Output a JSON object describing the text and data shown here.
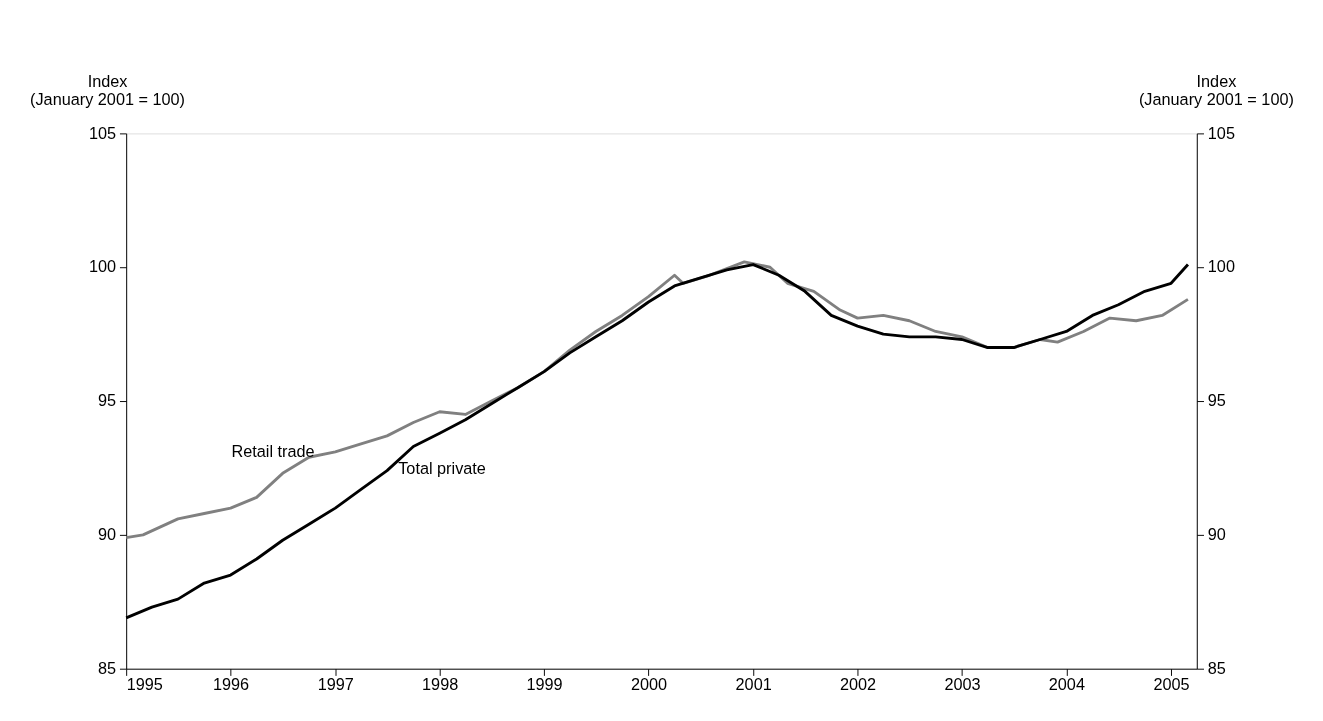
{
  "chart_data": {
    "type": "line",
    "ylabel": "Index\n(January 2001 = 100)",
    "y2label": "Index\n(January 2001 = 100)",
    "xlim": [
      "1995-01",
      "2005-04"
    ],
    "xticks": [
      {
        "value": "1995",
        "label": "1995"
      },
      {
        "value": "1996",
        "label": "1996"
      },
      {
        "value": "1997",
        "label": "1997"
      },
      {
        "value": "1998",
        "label": "1998"
      },
      {
        "value": "1999",
        "label": "1999"
      },
      {
        "value": "2000",
        "label": "2000"
      },
      {
        "value": "2001",
        "label": "2001"
      },
      {
        "value": "2002",
        "label": "2002"
      },
      {
        "value": "2003",
        "label": "2003"
      },
      {
        "value": "2004",
        "label": "2004"
      },
      {
        "value": "2005",
        "label": "2005"
      }
    ],
    "ylim": [
      85,
      105
    ],
    "yticks": [
      85,
      90,
      95,
      100,
      105
    ],
    "y2lim": [
      85,
      105
    ],
    "y2ticks": [
      85,
      90,
      95,
      100,
      105
    ],
    "grid": false,
    "legend": false,
    "marker": "none",
    "line_style": "solid",
    "series": [
      {
        "name": "Retail trade",
        "color": "#808080",
        "x": [
          "1995-01",
          "1995-03",
          "1995-05",
          "1995-07",
          "1995-10",
          "1996-01",
          "1996-04",
          "1996-07",
          "1996-10",
          "1997-01",
          "1997-04",
          "1997-07",
          "1997-10",
          "1998-01",
          "1998-04",
          "1998-07",
          "1998-10",
          "1999-01",
          "1999-04",
          "1999-07",
          "1999-10",
          "2000-01",
          "2000-04",
          "2000-05",
          "2000-08",
          "2000-12",
          "2001-03",
          "2001-05",
          "2001-08",
          "2001-11",
          "2002-01",
          "2002-04",
          "2002-07",
          "2002-10",
          "2003-01",
          "2003-04",
          "2003-07",
          "2003-10",
          "2003-12",
          "2004-03",
          "2004-06",
          "2004-09",
          "2004-12",
          "2005-03"
        ],
        "values": [
          89.9,
          90.0,
          90.3,
          90.6,
          90.8,
          91.0,
          91.4,
          92.3,
          92.9,
          93.1,
          93.4,
          93.7,
          94.2,
          94.6,
          94.5,
          95.0,
          95.5,
          96.1,
          96.9,
          97.6,
          98.2,
          98.9,
          99.7,
          99.4,
          99.7,
          100.2,
          100.0,
          99.4,
          99.1,
          98.4,
          98.1,
          98.2,
          98.0,
          97.6,
          97.4,
          97.0,
          97.0,
          97.3,
          97.2,
          97.6,
          98.1,
          98.0,
          98.2,
          98.8
        ]
      },
      {
        "name": "Total private",
        "color": "#000000",
        "x": [
          "1995-01",
          "1995-04",
          "1995-07",
          "1995-10",
          "1996-01",
          "1996-04",
          "1996-07",
          "1996-10",
          "1997-01",
          "1997-04",
          "1997-07",
          "1997-10",
          "1998-01",
          "1998-04",
          "1998-07",
          "1998-10",
          "1999-01",
          "1999-04",
          "1999-07",
          "1999-10",
          "2000-01",
          "2000-04",
          "2000-07",
          "2000-10",
          "2001-01",
          "2001-04",
          "2001-07",
          "2001-10",
          "2002-01",
          "2002-04",
          "2002-07",
          "2002-10",
          "2003-01",
          "2003-04",
          "2003-07",
          "2003-10",
          "2004-01",
          "2004-04",
          "2004-07",
          "2004-10",
          "2005-01",
          "2005-03"
        ],
        "values": [
          86.9,
          87.3,
          87.6,
          88.2,
          88.5,
          89.1,
          89.8,
          90.4,
          91.0,
          91.7,
          92.4,
          93.3,
          93.8,
          94.3,
          94.9,
          95.5,
          96.1,
          96.8,
          97.4,
          98.0,
          98.7,
          99.3,
          99.6,
          99.9,
          100.1,
          99.7,
          99.1,
          98.2,
          97.8,
          97.5,
          97.4,
          97.4,
          97.3,
          97.0,
          97.0,
          97.3,
          97.6,
          98.2,
          98.6,
          99.1,
          99.4,
          100.1
        ]
      }
    ]
  }
}
